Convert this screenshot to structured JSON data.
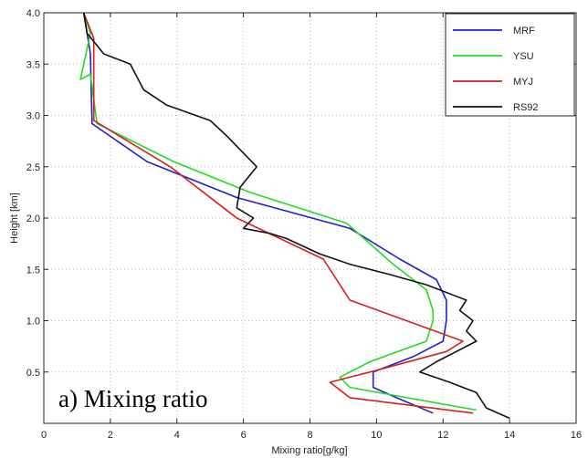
{
  "chart_data": {
    "type": "line",
    "title": "",
    "xlabel": "Mixing ratio[g/kg]",
    "ylabel": "Height [km]",
    "xlim": [
      0,
      16
    ],
    "ylim": [
      0,
      4.0
    ],
    "xticks": [
      0,
      2,
      4,
      6,
      8,
      10,
      12,
      14,
      16
    ],
    "yticks": [
      0.5,
      1.0,
      1.5,
      2.0,
      2.5,
      3.0,
      3.5,
      4.0
    ],
    "xtick_labels": [
      "0",
      "2",
      "4",
      "6",
      "8",
      "10",
      "12",
      "14",
      "16"
    ],
    "ytick_labels": [
      "0.5",
      "1.0",
      "1.5",
      "2.0",
      "2.5",
      "3.0",
      "3.5",
      "4.0"
    ],
    "grid": true,
    "legend_position": "top-right",
    "annotation": "a) Mixing ratio",
    "series": [
      {
        "name": "MRF",
        "color": "#1f1fcf",
        "points": [
          [
            11.7,
            0.1
          ],
          [
            10.6,
            0.25
          ],
          [
            9.9,
            0.35
          ],
          [
            9.9,
            0.5
          ],
          [
            11.1,
            0.65
          ],
          [
            12.0,
            0.8
          ],
          [
            12.1,
            1.0
          ],
          [
            12.1,
            1.2
          ],
          [
            11.8,
            1.4
          ],
          [
            10.7,
            1.6
          ],
          [
            9.2,
            1.9
          ],
          [
            5.8,
            2.2
          ],
          [
            3.1,
            2.55
          ],
          [
            1.45,
            2.92
          ],
          [
            1.4,
            3.6
          ],
          [
            1.2,
            4.0
          ]
        ]
      },
      {
        "name": "YSU",
        "color": "#22dd22",
        "points": [
          [
            13.0,
            0.13
          ],
          [
            9.2,
            0.35
          ],
          [
            8.9,
            0.45
          ],
          [
            9.8,
            0.6
          ],
          [
            11.5,
            0.8
          ],
          [
            11.7,
            1.0
          ],
          [
            11.7,
            1.1
          ],
          [
            11.5,
            1.3
          ],
          [
            10.5,
            1.55
          ],
          [
            9.1,
            1.95
          ],
          [
            6.2,
            2.25
          ],
          [
            3.9,
            2.55
          ],
          [
            1.6,
            2.92
          ],
          [
            1.4,
            3.4
          ],
          [
            1.1,
            3.35
          ],
          [
            1.4,
            3.8
          ],
          [
            1.2,
            4.0
          ]
        ]
      },
      {
        "name": "MYJ",
        "color": "#d42020",
        "points": [
          [
            12.9,
            0.1
          ],
          [
            9.2,
            0.25
          ],
          [
            8.6,
            0.4
          ],
          [
            9.8,
            0.5
          ],
          [
            12.1,
            0.7
          ],
          [
            12.6,
            0.8
          ],
          [
            9.2,
            1.2
          ],
          [
            8.4,
            1.6
          ],
          [
            5.8,
            2.0
          ],
          [
            3.8,
            2.5
          ],
          [
            1.5,
            2.95
          ],
          [
            1.5,
            3.75
          ],
          [
            1.2,
            4.0
          ]
        ]
      },
      {
        "name": "RS92",
        "color": "#111111",
        "points": [
          [
            14.0,
            0.05
          ],
          [
            13.3,
            0.15
          ],
          [
            13.0,
            0.3
          ],
          [
            12.2,
            0.4
          ],
          [
            11.3,
            0.5
          ],
          [
            11.8,
            0.6
          ],
          [
            12.4,
            0.7
          ],
          [
            13.0,
            0.8
          ],
          [
            12.7,
            0.9
          ],
          [
            12.9,
            1.0
          ],
          [
            12.5,
            1.1
          ],
          [
            12.7,
            1.2
          ],
          [
            11.5,
            1.35
          ],
          [
            10.4,
            1.45
          ],
          [
            9.2,
            1.55
          ],
          [
            8.3,
            1.65
          ],
          [
            7.3,
            1.8
          ],
          [
            6.8,
            1.85
          ],
          [
            6.0,
            1.9
          ],
          [
            6.3,
            2.0
          ],
          [
            5.8,
            2.1
          ],
          [
            5.9,
            2.3
          ],
          [
            6.4,
            2.5
          ],
          [
            5.5,
            2.8
          ],
          [
            5.0,
            2.95
          ],
          [
            3.7,
            3.1
          ],
          [
            3.0,
            3.25
          ],
          [
            2.6,
            3.5
          ],
          [
            1.8,
            3.6
          ],
          [
            1.3,
            3.8
          ],
          [
            1.2,
            4.0
          ]
        ]
      }
    ]
  }
}
